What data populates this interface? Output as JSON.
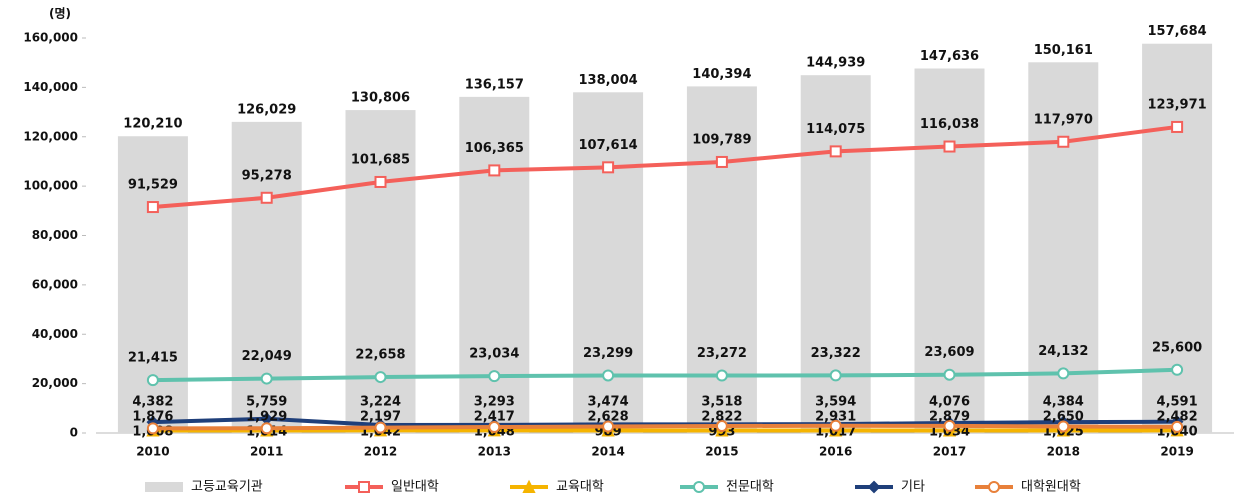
{
  "chart_data": {
    "type": "bar",
    "unit": "(명)",
    "categories": [
      "2010",
      "2011",
      "2012",
      "2013",
      "2014",
      "2015",
      "2016",
      "2017",
      "2018",
      "2019"
    ],
    "ylim": [
      0,
      160000
    ],
    "yticks": [
      0,
      {
        "value": 20000,
        "label": "20,000"
      },
      {
        "value": 40000,
        "label": "40,000"
      },
      {
        "value": 60000,
        "label": "60,000"
      },
      {
        "value": 80000,
        "label": "80,000"
      },
      {
        "value": 100000,
        "label": "100,000"
      },
      {
        "value": 120000,
        "label": "120,000"
      },
      {
        "value": 140000,
        "label": "140,000"
      },
      {
        "value": 160000,
        "label": "160,000"
      }
    ],
    "series": [
      {
        "name": "고등교육기관",
        "type": "bar",
        "color": "#d9d9d9",
        "values": [
          120210,
          126029,
          130806,
          136157,
          138004,
          140394,
          144939,
          147636,
          150161,
          157684
        ],
        "value_labels": [
          "120,210",
          "126,029",
          "130,806",
          "136,157",
          "138,004",
          "140,394",
          "144,939",
          "147,636",
          "150,161",
          "157,684"
        ]
      },
      {
        "name": "일반대학",
        "type": "line",
        "marker": "square",
        "color": "#f4605a",
        "values": [
          91529,
          95278,
          101685,
          106365,
          107614,
          109789,
          114075,
          116038,
          117970,
          123971
        ],
        "value_labels": [
          "91,529",
          "95,278",
          "101,685",
          "106,365",
          "107,614",
          "109,789",
          "114,075",
          "116,038",
          "117,970",
          "123,971"
        ]
      },
      {
        "name": "교육대학",
        "type": "line",
        "marker": "triangle",
        "color": "#f5b400",
        "values": [
          1008,
          1014,
          1042,
          1048,
          989,
          993,
          1017,
          1034,
          1025,
          1040
        ],
        "value_labels": [
          "1,008",
          "1,014",
          "1,042",
          "1,048",
          "989",
          "993",
          "1,017",
          "1,034",
          "1,025",
          "1,040"
        ]
      },
      {
        "name": "전문대학",
        "type": "line",
        "marker": "circle",
        "color": "#5fc2ad",
        "values": [
          21415,
          22049,
          22658,
          23034,
          23299,
          23272,
          23322,
          23609,
          24132,
          25600
        ],
        "value_labels": [
          "21,415",
          "22,049",
          "22,658",
          "23,034",
          "23,299",
          "23,272",
          "23,322",
          "23,609",
          "24,132",
          "25,600"
        ]
      },
      {
        "name": "기타",
        "type": "line",
        "marker": "diamond",
        "color": "#1f3f7a",
        "values": [
          4382,
          5759,
          3224,
          3293,
          3474,
          3518,
          3594,
          4076,
          4384,
          4591
        ],
        "value_labels": [
          "4,382",
          "5,759",
          "3,224",
          "3,293",
          "3,474",
          "3,518",
          "3,594",
          "4,076",
          "4,384",
          "4,591"
        ]
      },
      {
        "name": "대학원대학",
        "type": "line",
        "marker": "circle",
        "color": "#e8803a",
        "values": [
          1876,
          1929,
          2197,
          2417,
          2628,
          2822,
          2931,
          2879,
          2650,
          2482
        ],
        "value_labels": [
          "1,876",
          "1,929",
          "2,197",
          "2,417",
          "2,628",
          "2,822",
          "2,931",
          "2,879",
          "2,650",
          "2,482"
        ]
      }
    ]
  }
}
